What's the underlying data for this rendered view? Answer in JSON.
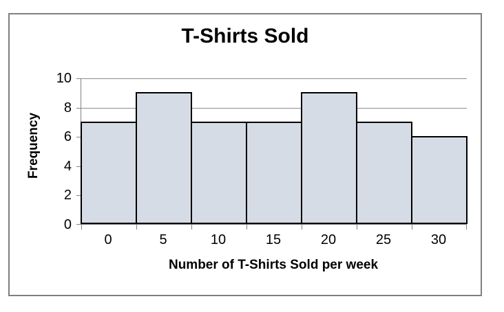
{
  "chart_data": {
    "type": "bar",
    "title": "T-Shirts Sold",
    "xlabel": "Number of T-Shirts Sold per week",
    "ylabel": "Frequency",
    "categories": [
      "0",
      "5",
      "10",
      "15",
      "20",
      "25",
      "30"
    ],
    "values": [
      7,
      9,
      7,
      7,
      9,
      7,
      6
    ],
    "yticks": [
      0,
      2,
      4,
      6,
      8,
      10
    ],
    "ylim": [
      0,
      10
    ],
    "grid": true,
    "legend": false,
    "style": "histogram-contiguous-bars"
  },
  "colors": {
    "background": "#FFFFFF",
    "frame_border": "#7F7F7F",
    "bar_fill": "#D6DCE5",
    "bar_border": "#000000",
    "gridline": "#8C8C8C",
    "axis": "#808080",
    "text": "#000000"
  }
}
